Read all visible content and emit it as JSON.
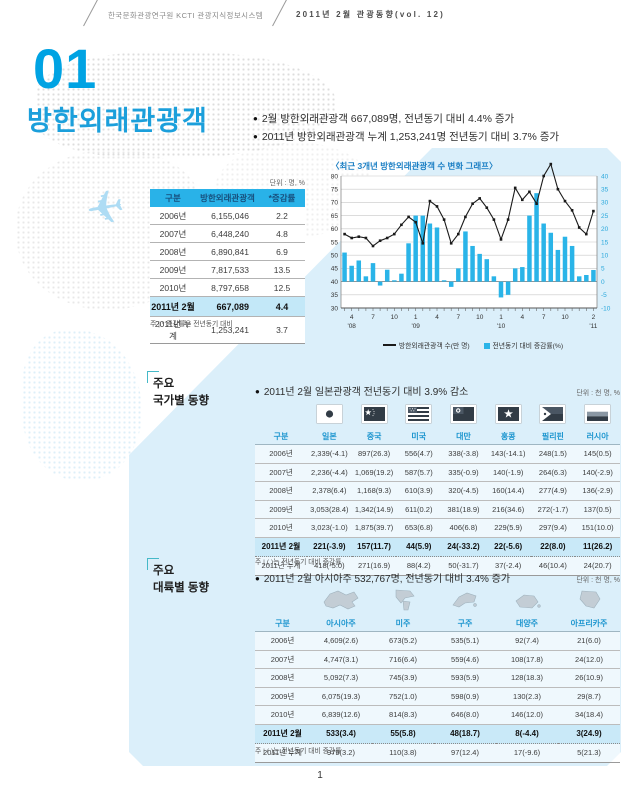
{
  "page": {
    "header_left": "한국문화관광연구원 KCTI 관광지식정보시스템",
    "header_right": "2011년 2월 관광동향(vol. 12)",
    "page_number": "1"
  },
  "section_main": {
    "number": "01",
    "title": "방한외래관광객",
    "bullets": [
      "2월 방한외래관광객 667,089명, 전년동기 대비 4.4% 증가",
      "2011년 방한외래관광객 누계 1,253,241명 전년동기 대비 3.7% 증가"
    ]
  },
  "summary_table": {
    "unit": "단위 : 명, %",
    "columns": [
      "구분",
      "방한외래관광객",
      "*증감률"
    ],
    "rows": [
      [
        "2006년",
        "6,155,046",
        "2.2"
      ],
      [
        "2007년",
        "6,448,240",
        "4.8"
      ],
      [
        "2008년",
        "6,890,841",
        "6.9"
      ],
      [
        "2009년",
        "7,817,533",
        "13.5"
      ],
      [
        "2010년",
        "8,797,658",
        "12.5"
      ]
    ],
    "highlight_row": [
      "2011년 2월",
      "667,089",
      "4.4"
    ],
    "total_row": [
      "2011년 누계",
      "1,253,241",
      "3.7"
    ],
    "footnote": "주 | * 증감률은 전년동기 대비"
  },
  "chart_data": {
    "type": "bar+line combo",
    "title": "〈최근 3개년 방한외래관광객 수 변화 그래프〉",
    "months": [
      "2008-03",
      "2008-04",
      "2008-05",
      "2008-06",
      "2008-07",
      "2008-08",
      "2008-09",
      "2008-10",
      "2008-11",
      "2008-12",
      "2009-01",
      "2009-02",
      "2009-03",
      "2009-04",
      "2009-05",
      "2009-06",
      "2009-07",
      "2009-08",
      "2009-09",
      "2009-10",
      "2009-11",
      "2009-12",
      "2010-01",
      "2010-02",
      "2010-03",
      "2010-04",
      "2010-05",
      "2010-06",
      "2010-07",
      "2010-08",
      "2010-09",
      "2010-10",
      "2010-11",
      "2010-12",
      "2011-01",
      "2011-02"
    ],
    "series": [
      {
        "name": "방한외래관광객 수(만 명)",
        "type": "line",
        "axis": "left",
        "values": [
          58,
          56.5,
          57,
          56.5,
          53.5,
          55.5,
          56.5,
          58,
          61.5,
          64.5,
          62.5,
          54.5,
          70.5,
          68.5,
          63.5,
          54.5,
          58,
          64.5,
          69.5,
          71.5,
          68,
          63.5,
          56,
          63.5,
          75.5,
          71,
          74,
          69.5,
          80,
          84.5,
          75,
          70.5,
          67,
          60.5,
          58,
          66.7
        ]
      },
      {
        "name": "전년동기 대비 증감률(%)",
        "type": "bar",
        "axis": "right",
        "values": [
          11,
          6,
          8,
          2,
          7,
          -1.5,
          4.5,
          0.5,
          3,
          14.5,
          25,
          25,
          22,
          20.5,
          0.5,
          -2,
          5,
          19,
          13.5,
          10.5,
          8.5,
          2,
          -6,
          -5,
          5,
          5.5,
          25,
          33.5,
          22,
          18.5,
          12,
          17,
          13.5,
          2,
          2.5,
          4.4
        ]
      }
    ],
    "left_axis": {
      "min": 30,
      "max": 80,
      "step": 5
    },
    "right_axis": {
      "min": -10,
      "max": 40,
      "step": 5
    },
    "x_ticks": [
      {
        "i": 1,
        "label": "4"
      },
      {
        "i": 4,
        "label": "7"
      },
      {
        "i": 7,
        "label": "10"
      },
      {
        "i": 10,
        "label": "1"
      },
      {
        "i": 13,
        "label": "4"
      },
      {
        "i": 16,
        "label": "7"
      },
      {
        "i": 19,
        "label": "10"
      },
      {
        "i": 22,
        "label": "1"
      },
      {
        "i": 25,
        "label": "4"
      },
      {
        "i": 28,
        "label": "7"
      },
      {
        "i": 31,
        "label": "10"
      },
      {
        "i": 35,
        "label": "2"
      }
    ],
    "year_ticks": [
      {
        "i": 1,
        "label": "'08"
      },
      {
        "i": 10,
        "label": "'09"
      },
      {
        "i": 22,
        "label": "'10"
      },
      {
        "i": 35,
        "label": "'11"
      }
    ],
    "grid": true,
    "legend_position": "bottom"
  },
  "country_section": {
    "label_line1": "주요",
    "label_line2": "국가별 동향",
    "bullet": "2011년 2월 일본관광객 전년동기 대비 3.9% 감소",
    "unit": "단위 : 천 명, %",
    "col_header": "구분",
    "countries": [
      {
        "name": "일본",
        "icon": "japan-flag"
      },
      {
        "name": "중국",
        "icon": "china-flag"
      },
      {
        "name": "미국",
        "icon": "usa-flag"
      },
      {
        "name": "대만",
        "icon": "taiwan-flag"
      },
      {
        "name": "홍콩",
        "icon": "hongkong-flag"
      },
      {
        "name": "필리핀",
        "icon": "philippines-flag"
      },
      {
        "name": "러시아",
        "icon": "russia-flag"
      }
    ],
    "rows": [
      [
        "2006년",
        "2,339(-4.1)",
        "897(26.3)",
        "556(4.7)",
        "338(-3.8)",
        "143(-14.1)",
        "248(1.5)",
        "145(0.5)"
      ],
      [
        "2007년",
        "2,236(-4.4)",
        "1,069(19.2)",
        "587(5.7)",
        "335(-0.9)",
        "140(-1.9)",
        "264(6.3)",
        "140(-2.9)"
      ],
      [
        "2008년",
        "2,378(6.4)",
        "1,168(9.3)",
        "610(3.9)",
        "320(-4.5)",
        "160(14.4)",
        "277(4.9)",
        "136(-2.9)"
      ],
      [
        "2009년",
        "3,053(28.4)",
        "1,342(14.9)",
        "611(0.2)",
        "381(18.9)",
        "216(34.6)",
        "272(-1.7)",
        "137(0.5)"
      ],
      [
        "2010년",
        "3,023(-1.0)",
        "1,875(39.7)",
        "653(6.8)",
        "406(6.8)",
        "229(5.9)",
        "297(9.4)",
        "151(10.0)"
      ]
    ],
    "highlight_row": [
      "2011년 2월",
      "221(-3.9)",
      "157(11.7)",
      "44(5.9)",
      "24(-33.2)",
      "22(-5.6)",
      "22(8.0)",
      "11(26.2)"
    ],
    "total_row": [
      "2011년 누계",
      "418(-5.0)",
      "271(16.9)",
      "88(4.2)",
      "50(-31.7)",
      "37(-2.4)",
      "46(10.4)",
      "24(20.7)"
    ],
    "footnote": "주 | ( )는 전년동기 대비 증감률"
  },
  "continent_section": {
    "label_line1": "주요",
    "label_line2": "대륙별 동향",
    "bullet": "2011년 2월 아시아주 532,767명, 전년동기 대비 3.4% 증가",
    "unit": "단위 : 천 명, %",
    "col_header": "구분",
    "continents": [
      {
        "name": "아시아주",
        "icon": "asia-map"
      },
      {
        "name": "미주",
        "icon": "americas-map"
      },
      {
        "name": "구주",
        "icon": "europe-map"
      },
      {
        "name": "대양주",
        "icon": "oceania-map"
      },
      {
        "name": "아프리카주",
        "icon": "africa-map"
      }
    ],
    "rows": [
      [
        "2006년",
        "4,609(2.6)",
        "673(5.2)",
        "535(5.1)",
        "92(7.4)",
        "21(6.0)"
      ],
      [
        "2007년",
        "4,747(3.1)",
        "716(6.4)",
        "559(4.6)",
        "108(17.8)",
        "24(12.0)"
      ],
      [
        "2008년",
        "5,092(7.3)",
        "745(3.9)",
        "593(5.9)",
        "128(18.3)",
        "26(10.9)"
      ],
      [
        "2009년",
        "6,075(19.3)",
        "752(1.0)",
        "598(0.9)",
        "130(2.3)",
        "29(8.7)"
      ],
      [
        "2010년",
        "6,839(12.6)",
        "814(8.3)",
        "646(8.0)",
        "146(12.0)",
        "34(18.4)"
      ]
    ],
    "highlight_row": [
      "2011년 2월",
      "533(3.4)",
      "55(5.8)",
      "48(18.7)",
      "8(-4.4)",
      "3(24.9)"
    ],
    "total_row": [
      "2011년 누계",
      "979(3.2)",
      "110(3.8)",
      "97(12.4)",
      "17(-9.6)",
      "5(21.3)"
    ],
    "footnote": "주 | ( )는 전년동기 대비 증감률"
  },
  "colors": {
    "accent": "#00a3e3",
    "panel": "#dbeffa",
    "table_header_bg": "#29b2e8",
    "highlight_row_bg": "#c9e9f8",
    "bar": "#2ab4e8",
    "line": "#1a1a1a",
    "blue_text": "#1e96cf",
    "right_axis_text": "#2aa8dc"
  }
}
